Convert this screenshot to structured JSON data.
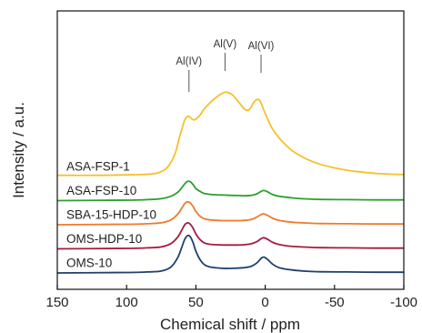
{
  "chart_data": {
    "type": "line",
    "title": "",
    "xlabel": "Chemical shift / ppm",
    "ylabel": "Intensity / a.u.",
    "xlim": [
      150,
      -100
    ],
    "x_ticks": [
      150,
      100,
      50,
      0,
      -50,
      -100
    ],
    "x_tick_labels": [
      "150",
      "100",
      "50",
      "0",
      "-50",
      "-100"
    ],
    "y_ticks_shown": false,
    "grid": false,
    "legend": "inline labels at left of each trace",
    "annotations": [
      {
        "text": "Al(IV)",
        "x": 55
      },
      {
        "text": "Al(V)",
        "x": 29
      },
      {
        "text": "Al(VI)",
        "x": 3
      }
    ],
    "series": [
      {
        "name": "ASA-FSP-1",
        "color": "#f5c02c",
        "offset": 4.0,
        "points": [
          [
            150,
            0.05
          ],
          [
            120,
            0.05
          ],
          [
            90,
            0.08
          ],
          [
            80,
            0.12
          ],
          [
            75,
            0.2
          ],
          [
            70,
            0.42
          ],
          [
            65,
            0.95
          ],
          [
            62,
            1.6
          ],
          [
            60,
            2.0
          ],
          [
            58,
            2.35
          ],
          [
            56,
            2.5
          ],
          [
            54,
            2.45
          ],
          [
            52,
            2.35
          ],
          [
            50,
            2.38
          ],
          [
            47,
            2.55
          ],
          [
            44,
            2.8
          ],
          [
            40,
            3.05
          ],
          [
            35,
            3.3
          ],
          [
            31,
            3.45
          ],
          [
            28,
            3.5
          ],
          [
            24,
            3.4
          ],
          [
            20,
            3.15
          ],
          [
            15,
            2.8
          ],
          [
            12,
            2.75
          ],
          [
            10,
            2.9
          ],
          [
            8,
            3.1
          ],
          [
            5,
            3.2
          ],
          [
            3,
            3.05
          ],
          [
            1,
            2.75
          ],
          [
            -2,
            2.35
          ],
          [
            -5,
            2.0
          ],
          [
            -10,
            1.6
          ],
          [
            -15,
            1.3
          ],
          [
            -20,
            1.05
          ],
          [
            -30,
            0.72
          ],
          [
            -40,
            0.5
          ],
          [
            -50,
            0.36
          ],
          [
            -60,
            0.25
          ],
          [
            -70,
            0.18
          ],
          [
            -80,
            0.13
          ],
          [
            -90,
            0.1
          ],
          [
            -100,
            0.08
          ]
        ]
      },
      {
        "name": "ASA-FSP-10",
        "color": "#2ca02c",
        "offset": 3.0,
        "points": [
          [
            150,
            0.0
          ],
          [
            100,
            0.02
          ],
          [
            85,
            0.04
          ],
          [
            75,
            0.08
          ],
          [
            68,
            0.18
          ],
          [
            63,
            0.35
          ],
          [
            60,
            0.55
          ],
          [
            58,
            0.7
          ],
          [
            56,
            0.8
          ],
          [
            54,
            0.78
          ],
          [
            52,
            0.66
          ],
          [
            50,
            0.5
          ],
          [
            47,
            0.38
          ],
          [
            44,
            0.3
          ],
          [
            40,
            0.26
          ],
          [
            35,
            0.24
          ],
          [
            30,
            0.23
          ],
          [
            25,
            0.22
          ],
          [
            20,
            0.21
          ],
          [
            15,
            0.2
          ],
          [
            10,
            0.22
          ],
          [
            6,
            0.28
          ],
          [
            3,
            0.38
          ],
          [
            1,
            0.42
          ],
          [
            -2,
            0.36
          ],
          [
            -5,
            0.26
          ],
          [
            -10,
            0.18
          ],
          [
            -20,
            0.11
          ],
          [
            -30,
            0.07
          ],
          [
            -40,
            0.05
          ],
          [
            -60,
            0.04
          ],
          [
            -80,
            0.03
          ],
          [
            -100,
            0.03
          ]
        ]
      },
      {
        "name": "SBA-15-HDP-10",
        "color": "#ef7a2d",
        "offset": 2.0,
        "points": [
          [
            150,
            0.0
          ],
          [
            100,
            0.02
          ],
          [
            85,
            0.04
          ],
          [
            75,
            0.08
          ],
          [
            68,
            0.2
          ],
          [
            63,
            0.45
          ],
          [
            60,
            0.7
          ],
          [
            58,
            0.88
          ],
          [
            56,
            0.95
          ],
          [
            54,
            0.9
          ],
          [
            52,
            0.75
          ],
          [
            50,
            0.55
          ],
          [
            47,
            0.35
          ],
          [
            44,
            0.25
          ],
          [
            40,
            0.2
          ],
          [
            35,
            0.18
          ],
          [
            30,
            0.17
          ],
          [
            25,
            0.17
          ],
          [
            20,
            0.17
          ],
          [
            15,
            0.18
          ],
          [
            10,
            0.22
          ],
          [
            6,
            0.32
          ],
          [
            3,
            0.42
          ],
          [
            1,
            0.45
          ],
          [
            -2,
            0.38
          ],
          [
            -5,
            0.28
          ],
          [
            -10,
            0.18
          ],
          [
            -20,
            0.1
          ],
          [
            -30,
            0.07
          ],
          [
            -40,
            0.05
          ],
          [
            -60,
            0.04
          ],
          [
            -80,
            0.03
          ],
          [
            -100,
            0.03
          ]
        ]
      },
      {
        "name": "OMS-HDP-10",
        "color": "#a51c3f",
        "offset": 1.0,
        "points": [
          [
            150,
            0.0
          ],
          [
            100,
            0.02
          ],
          [
            85,
            0.04
          ],
          [
            75,
            0.08
          ],
          [
            68,
            0.22
          ],
          [
            63,
            0.5
          ],
          [
            60,
            0.8
          ],
          [
            58,
            1.0
          ],
          [
            56,
            1.08
          ],
          [
            54,
            1.02
          ],
          [
            52,
            0.85
          ],
          [
            50,
            0.62
          ],
          [
            47,
            0.38
          ],
          [
            44,
            0.25
          ],
          [
            40,
            0.19
          ],
          [
            35,
            0.17
          ],
          [
            30,
            0.16
          ],
          [
            25,
            0.16
          ],
          [
            20,
            0.16
          ],
          [
            15,
            0.17
          ],
          [
            10,
            0.21
          ],
          [
            6,
            0.3
          ],
          [
            3,
            0.42
          ],
          [
            1,
            0.46
          ],
          [
            -2,
            0.39
          ],
          [
            -5,
            0.28
          ],
          [
            -10,
            0.18
          ],
          [
            -20,
            0.1
          ],
          [
            -30,
            0.07
          ],
          [
            -40,
            0.05
          ],
          [
            -60,
            0.04
          ],
          [
            -80,
            0.03
          ],
          [
            -100,
            0.03
          ]
        ]
      },
      {
        "name": "OMS-10",
        "color": "#1f3f6e",
        "offset": 0.0,
        "points": [
          [
            150,
            0.0
          ],
          [
            100,
            0.02
          ],
          [
            85,
            0.04
          ],
          [
            75,
            0.08
          ],
          [
            68,
            0.25
          ],
          [
            63,
            0.65
          ],
          [
            60,
            1.1
          ],
          [
            58,
            1.4
          ],
          [
            56,
            1.55
          ],
          [
            54,
            1.5
          ],
          [
            52,
            1.25
          ],
          [
            50,
            0.9
          ],
          [
            47,
            0.55
          ],
          [
            44,
            0.35
          ],
          [
            40,
            0.25
          ],
          [
            35,
            0.21
          ],
          [
            30,
            0.19
          ],
          [
            25,
            0.19
          ],
          [
            20,
            0.2
          ],
          [
            15,
            0.22
          ],
          [
            10,
            0.28
          ],
          [
            6,
            0.42
          ],
          [
            3,
            0.6
          ],
          [
            1,
            0.66
          ],
          [
            -2,
            0.55
          ],
          [
            -5,
            0.38
          ],
          [
            -10,
            0.22
          ],
          [
            -20,
            0.12
          ],
          [
            -30,
            0.07
          ],
          [
            -40,
            0.05
          ],
          [
            -60,
            0.04
          ],
          [
            -80,
            0.03
          ],
          [
            -100,
            0.03
          ]
        ]
      }
    ]
  }
}
